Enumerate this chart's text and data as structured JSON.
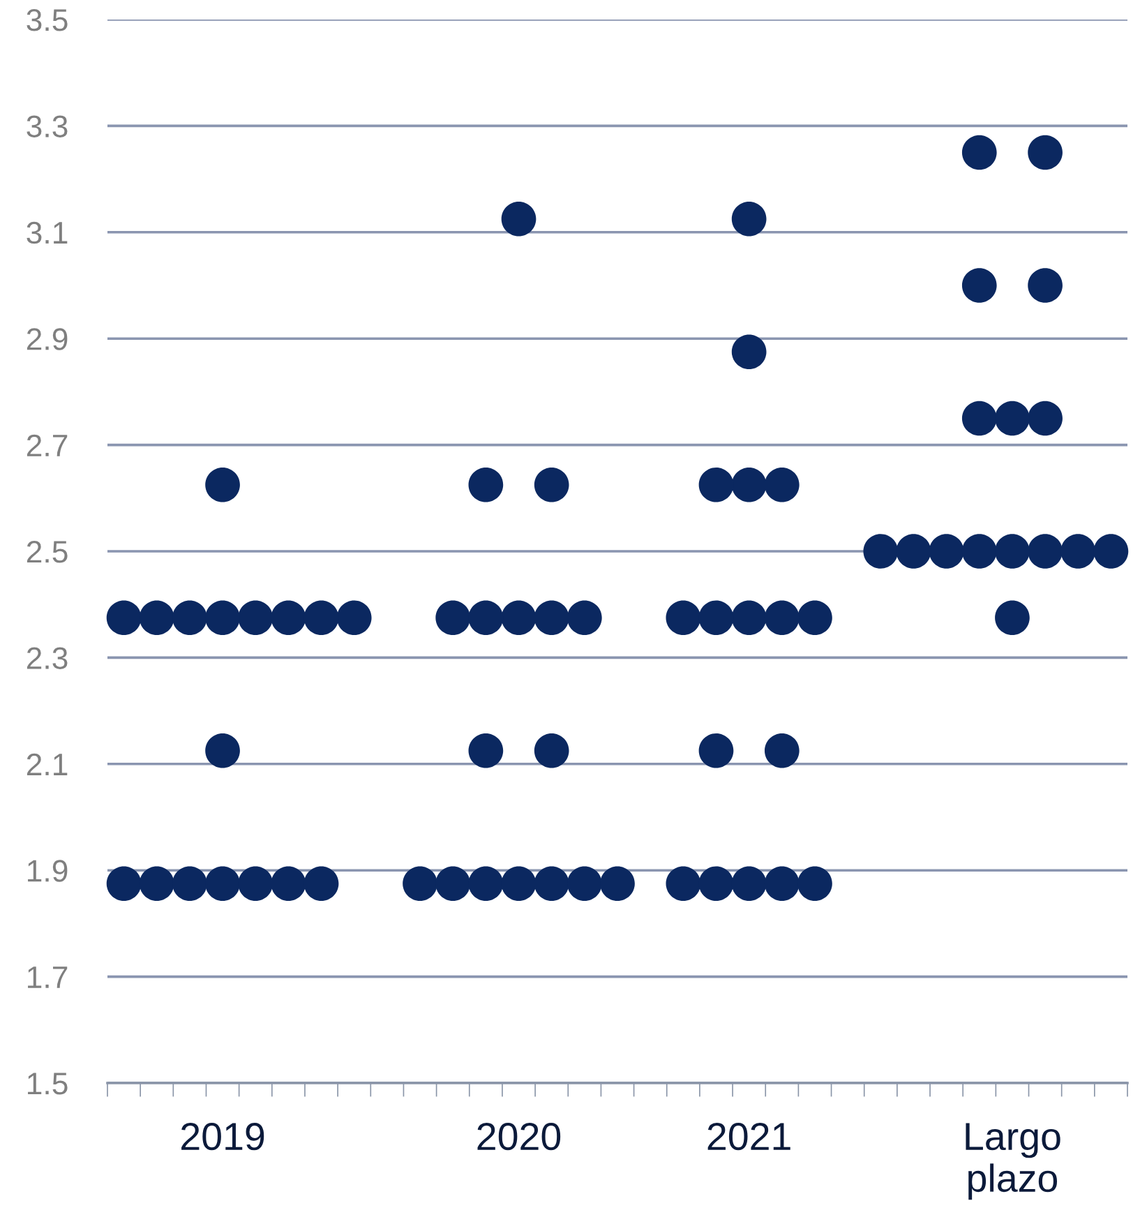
{
  "chart_data": {
    "type": "scatter",
    "ylim": [
      1.5,
      3.5
    ],
    "yticks": [
      1.5,
      1.7,
      1.9,
      2.1,
      2.3,
      2.5,
      2.7,
      2.9,
      3.1,
      3.3,
      3.5
    ],
    "categories": [
      null,
      null,
      null,
      "2019",
      null,
      null,
      null,
      null,
      null,
      null,
      null,
      null,
      "2020",
      null,
      null,
      null,
      null,
      null,
      null,
      "2021",
      null,
      null,
      null,
      null,
      null,
      null,
      null,
      "Largo\nplazo",
      null,
      null,
      null
    ],
    "grid": "y",
    "marker": "circle",
    "series": [
      {
        "color": "#0b2860",
        "values": [
          1.875,
          1.875,
          1.875,
          1.875,
          1.875,
          1.875,
          1.875,
          2.375,
          null,
          1.875,
          1.875,
          1.875,
          1.875,
          1.875,
          1.875,
          1.875,
          null,
          1.875,
          1.875,
          1.875,
          1.875,
          1.875,
          null,
          2.5,
          2.5,
          2.5,
          2.5,
          2.375,
          2.5,
          2.5,
          2.5
        ]
      },
      {
        "color": "#0b2860",
        "values": [
          2.375,
          2.375,
          2.375,
          2.125,
          2.375,
          2.375,
          2.375,
          null,
          null,
          null,
          2.375,
          2.125,
          2.375,
          2.125,
          2.375,
          null,
          null,
          2.375,
          2.125,
          2.375,
          2.125,
          2.375,
          null,
          null,
          null,
          null,
          2.75,
          2.5,
          2.75,
          null,
          null
        ]
      },
      {
        "color": "#0b2860",
        "values": [
          null,
          null,
          null,
          2.375,
          null,
          null,
          null,
          null,
          null,
          null,
          null,
          2.375,
          3.125,
          2.375,
          null,
          null,
          null,
          null,
          2.375,
          2.625,
          2.375,
          null,
          null,
          null,
          null,
          null,
          3.0,
          2.75,
          3.0,
          null,
          null
        ]
      },
      {
        "color": "#0b2860",
        "values": [
          null,
          null,
          null,
          2.625,
          null,
          null,
          null,
          null,
          null,
          null,
          null,
          2.625,
          null,
          2.625,
          null,
          null,
          null,
          null,
          2.625,
          2.875,
          2.625,
          null,
          null,
          null,
          null,
          null,
          3.25,
          null,
          3.25,
          null,
          null
        ]
      },
      {
        "color": "#0b2860",
        "values": [
          null,
          null,
          null,
          null,
          null,
          null,
          null,
          null,
          null,
          null,
          null,
          null,
          null,
          null,
          null,
          null,
          null,
          null,
          null,
          3.125,
          null,
          null,
          null,
          null,
          null,
          null,
          null,
          null,
          null,
          null,
          null
        ]
      }
    ]
  }
}
